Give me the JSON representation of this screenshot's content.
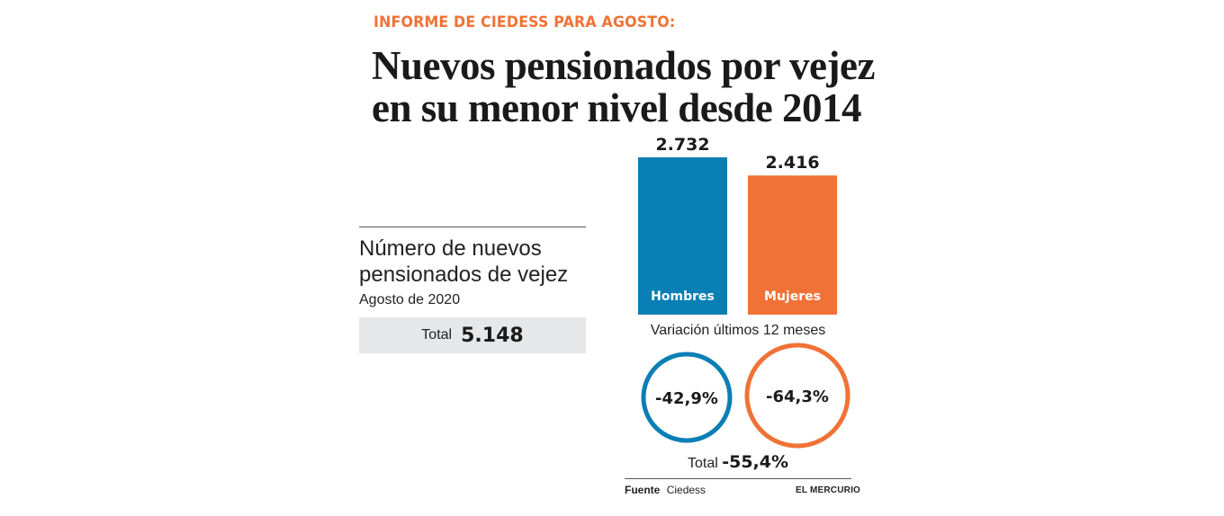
{
  "kicker": "INFORME DE CIEDESS PARA AGOSTO:",
  "headline": {
    "line1": "Nuevos pensionados por vejez",
    "line2": "en su menor nivel desde 2014"
  },
  "summary": {
    "title_line1": "Número de nuevos",
    "title_line2": "pensionados de vejez",
    "period": "Agosto de 2020",
    "total_label": "Total",
    "total_value": "5.148"
  },
  "chart_data": {
    "type": "bar",
    "categories": [
      "Hombres",
      "Mujeres"
    ],
    "values": [
      2732,
      2416
    ],
    "value_labels": [
      "2.732",
      "2.416"
    ],
    "colors": [
      "#0a7fb5",
      "#f07236"
    ],
    "ylim": [
      0,
      2732
    ],
    "grid": false,
    "legend": "none",
    "variation": {
      "title": "Variación últimos 12 meses",
      "values": [
        "-42,9%",
        "-64,3%"
      ],
      "total_label": "Total",
      "total_value": "-55,4%"
    }
  },
  "footer": {
    "source_label": "Fuente",
    "source_value": "Ciedess",
    "outlet": "EL MERCURIO"
  }
}
